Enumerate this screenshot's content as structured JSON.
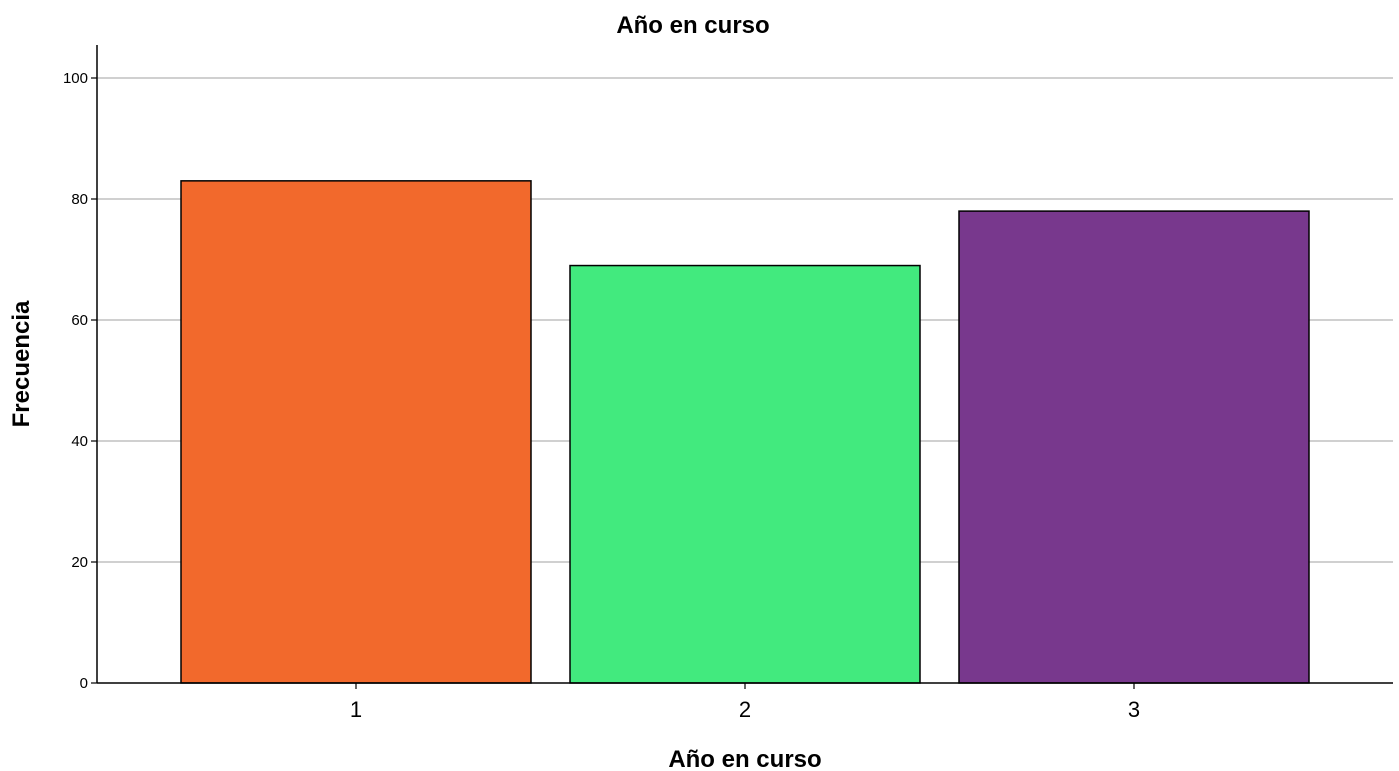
{
  "chart_data": {
    "type": "bar",
    "title": "Año en curso",
    "xlabel": "Año en curso",
    "ylabel": "Frecuencia",
    "categories": [
      "1",
      "2",
      "3"
    ],
    "values": [
      83,
      69,
      78
    ],
    "colors": [
      "#F2692C",
      "#42EA7E",
      "#78388D"
    ],
    "ylim": [
      0,
      105
    ],
    "yticks": [
      0,
      20,
      40,
      60,
      80,
      100
    ],
    "grid": true,
    "legend": "none"
  }
}
